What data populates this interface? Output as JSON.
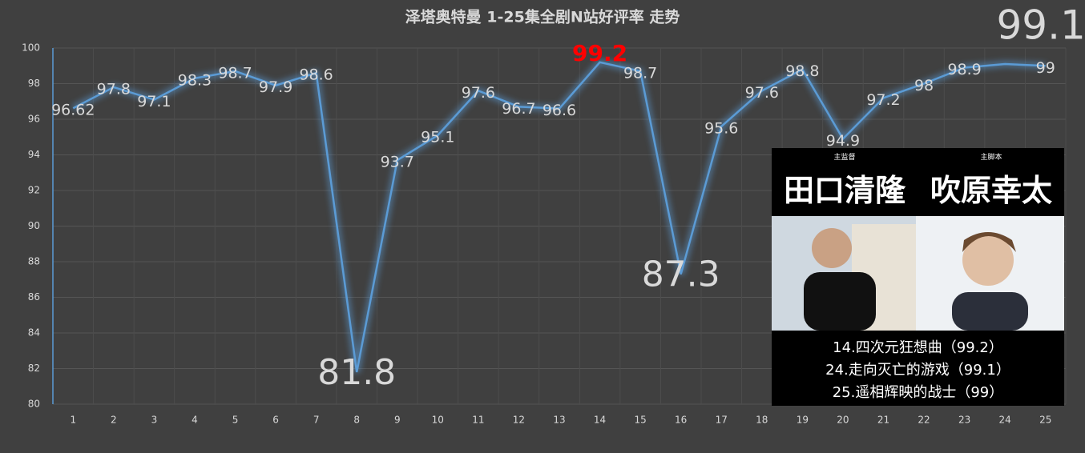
{
  "chart_data": {
    "type": "line",
    "title": "泽塔奥特曼 1-25集全剧N站好评率 走势",
    "categories": [
      "1",
      "2",
      "3",
      "4",
      "5",
      "6",
      "7",
      "8",
      "9",
      "10",
      "11",
      "12",
      "13",
      "14",
      "15",
      "16",
      "17",
      "18",
      "19",
      "20",
      "21",
      "22",
      "23",
      "24",
      "25"
    ],
    "series": [
      {
        "name": "好评率",
        "color": "#5b9bd5",
        "values": [
          96.62,
          97.8,
          97.1,
          98.3,
          98.7,
          97.9,
          98.6,
          81.8,
          93.7,
          95.1,
          97.6,
          96.7,
          96.6,
          99.2,
          98.7,
          87.3,
          95.6,
          97.6,
          98.8,
          94.9,
          97.2,
          98,
          98.9,
          99.1,
          99
        ]
      }
    ],
    "ylim": [
      80,
      100
    ],
    "yticks": [
      80,
      82,
      84,
      86,
      88,
      90,
      92,
      94,
      96,
      98,
      100
    ],
    "grid": true
  },
  "inset": {
    "staff": [
      {
        "role": "主监督",
        "name": "田口清隆"
      },
      {
        "role": "主脚本",
        "name": "吹原幸太"
      }
    ],
    "notes": [
      "14.四次元狂想曲（99.2）",
      "24.走向灭亡的游戏（99.1）",
      "25.遥相辉映的战士（99）"
    ]
  }
}
